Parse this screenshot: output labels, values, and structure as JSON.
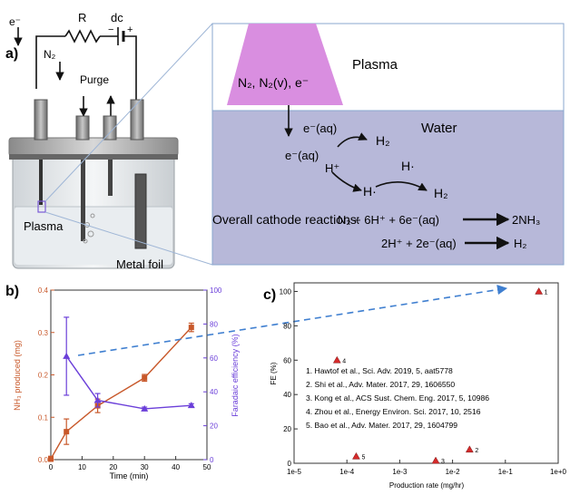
{
  "panel_a": {
    "label": "a)",
    "circuit": {
      "electron": "e⁻",
      "resistor": "R",
      "source": "dc",
      "minus": "−",
      "plus": "+"
    },
    "gas_in": "N₂",
    "purge": "Purge",
    "plasma": "Plasma",
    "metal_foil": "Metal foil",
    "zoom": {
      "plasma_species": "N₂, N₂(v), e⁻",
      "plasma_label": "Plasma",
      "water_label": "Water",
      "e_aq_1": "e⁻(aq)",
      "h2_1": "H₂",
      "e_aq_2": "e⁻(aq)",
      "h_plus": "H⁺",
      "h_dot_1": "H·",
      "h_dot_2": "H·",
      "h2_2": "H₂",
      "overall_label": "Overall cathode reactions:",
      "reaction_1_lhs": "N₂ + 6H⁺ + 6e⁻(aq)",
      "reaction_1_rhs": "2NH₃",
      "reaction_2_lhs": "2H⁺ + 2e⁻(aq)",
      "reaction_2_rhs": "H₂"
    }
  },
  "chart_data": [
    {
      "panel": "b)",
      "type": "line",
      "xlabel": "Time (min)",
      "ylabel_left": "NH₃ produced (mg)",
      "ylabel_right": "Faradaic efficiency (%)",
      "xlim": [
        0,
        50
      ],
      "ylim_left": [
        0,
        0.4
      ],
      "ylim_right": [
        0,
        100
      ],
      "xticks": [
        0,
        10,
        20,
        30,
        40,
        50
      ],
      "yticks_left": [
        0.0,
        0.1,
        0.2,
        0.3,
        0.4
      ],
      "yticks_right": [
        0,
        20,
        40,
        60,
        80,
        100
      ],
      "series": [
        {
          "axis": "left",
          "color": "#c8582a",
          "marker": "square",
          "x": [
            0,
            5,
            15,
            30,
            45
          ],
          "y": [
            0.002,
            0.066,
            0.127,
            0.193,
            0.312
          ],
          "err": [
            0.006,
            0.03,
            0.016,
            0.008,
            0.01
          ]
        },
        {
          "axis": "right",
          "color": "#6b3fd9",
          "marker": "triangle",
          "x": [
            5,
            15,
            30,
            45
          ],
          "y": [
            61,
            35,
            30,
            32
          ],
          "err": [
            23,
            4,
            1,
            1
          ]
        }
      ]
    },
    {
      "panel": "c)",
      "type": "scatter",
      "xlabel": "Production rate (mg/hr)",
      "ylabel": "FE (%)",
      "xscale": "log",
      "xlim": [
        1e-05,
        1
      ],
      "ylim": [
        0,
        105
      ],
      "xtick_labels": [
        "1e-5",
        "1e-4",
        "1e-3",
        "1e-2",
        "1e-1",
        "1e+0"
      ],
      "yticks": [
        0,
        20,
        40,
        60,
        80,
        100
      ],
      "marker_color": "#d62a2a",
      "points": [
        {
          "label": "1",
          "x": 0.43,
          "y": 100
        },
        {
          "label": "2",
          "x": 0.021,
          "y": 8
        },
        {
          "label": "3",
          "x": 0.0048,
          "y": 1.5
        },
        {
          "label": "4",
          "x": 6.5e-05,
          "y": 60
        },
        {
          "label": "5",
          "x": 0.00015,
          "y": 4
        }
      ],
      "legend": [
        "1. Hawtof et al., Sci. Adv. 2019, 5, aat5778",
        "2. Shi et al., Adv. Mater. 2017, 29, 1606550",
        "3. Kong et al., ACS Sust. Chem. Eng. 2017, 5, 10986",
        "4. Zhou et al., Energy Environ. Sci. 2017, 10, 2516",
        "5. Bao et al., Adv. Mater. 2017, 29, 1604799"
      ]
    }
  ]
}
